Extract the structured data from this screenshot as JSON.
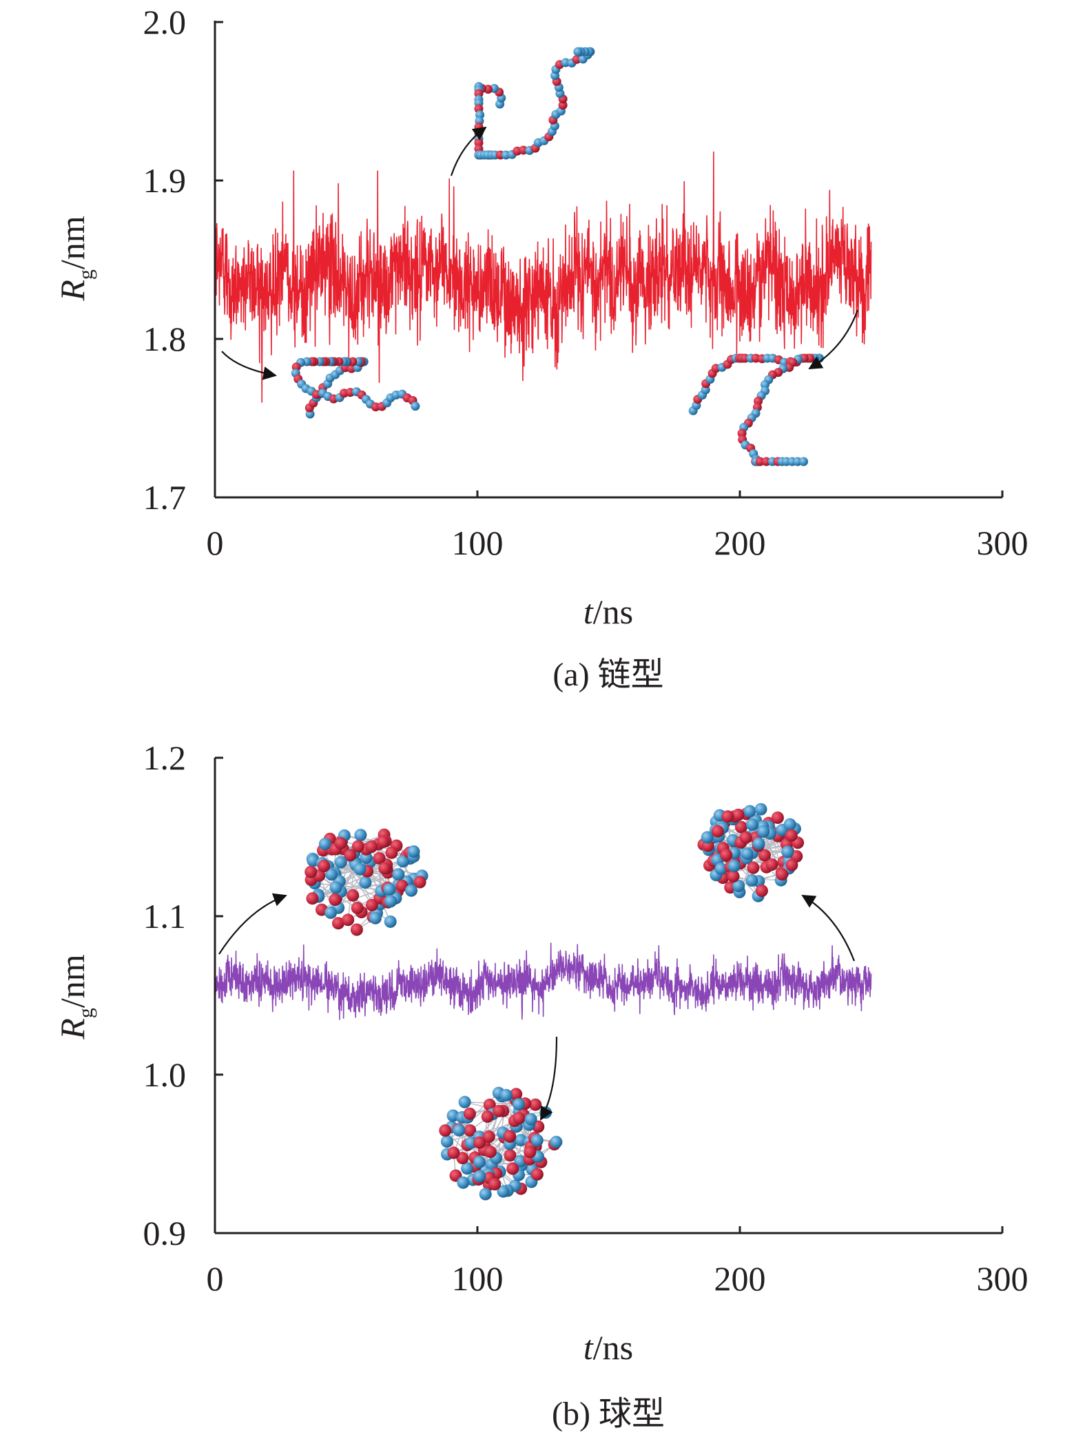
{
  "chart_data": [
    {
      "type": "line",
      "panel_caption": "(a) 链型",
      "xlabel": {
        "var": "t",
        "unit": "/ns"
      },
      "ylabel": {
        "var": "R",
        "sub": "g",
        "unit": "/nm"
      },
      "xlim": [
        0,
        300
      ],
      "ylim": [
        1.7,
        2.0
      ],
      "x_ticks": [
        0,
        100,
        200,
        300
      ],
      "x_tick_labels": [
        "0",
        "100",
        "200",
        "300"
      ],
      "y_ticks": [
        1.7,
        1.8,
        1.9,
        2.0
      ],
      "y_tick_labels": [
        "1.7",
        "1.8",
        "1.9",
        "2.0"
      ],
      "grid": false,
      "legend": "none",
      "series": [
        {
          "color": "#e8212f",
          "x_range": [
            0,
            250
          ],
          "mean": 1.84,
          "fluctuation": 0.016,
          "spikes": [
            {
              "x": 17,
              "y": 1.785
            },
            {
              "x": 30,
              "y": 1.906
            },
            {
              "x": 47,
              "y": 1.898
            },
            {
              "x": 62,
              "y": 1.906
            },
            {
              "x": 91,
              "y": 1.896
            },
            {
              "x": 97,
              "y": 1.792
            },
            {
              "x": 145,
              "y": 1.793
            },
            {
              "x": 158,
              "y": 1.885
            },
            {
              "x": 190,
              "y": 1.918
            },
            {
              "x": 225,
              "y": 1.882
            }
          ]
        }
      ],
      "annotations": [
        {
          "kind": "molecule-snapshot",
          "shape": "chain",
          "at_time": 0
        },
        {
          "kind": "molecule-snapshot",
          "shape": "chain",
          "at_time": 91
        },
        {
          "kind": "molecule-snapshot",
          "shape": "chain",
          "at_time": 250
        }
      ]
    },
    {
      "type": "line",
      "panel_caption": "(b) 球型",
      "xlabel": {
        "var": "t",
        "unit": "/ns"
      },
      "ylabel": {
        "var": "R",
        "sub": "g",
        "unit": "/nm"
      },
      "xlim": [
        0,
        300
      ],
      "ylim": [
        0.9,
        1.2
      ],
      "x_ticks": [
        0,
        100,
        200,
        300
      ],
      "x_tick_labels": [
        "0",
        "100",
        "200",
        "300"
      ],
      "y_ticks": [
        0.9,
        1.0,
        1.1,
        1.2
      ],
      "y_tick_labels": [
        "0.9",
        "1.0",
        "1.1",
        "1.2"
      ],
      "grid": false,
      "legend": "none",
      "series": [
        {
          "color": "#8a46b6",
          "x_range": [
            0,
            250
          ],
          "mean": 1.057,
          "fluctuation": 0.006,
          "spikes": [
            {
              "x": 128,
              "y": 1.083
            },
            {
              "x": 117,
              "y": 1.035
            },
            {
              "x": 70,
              "y": 1.072
            }
          ]
        }
      ],
      "annotations": [
        {
          "kind": "molecule-snapshot",
          "shape": "globule",
          "at_time": 0
        },
        {
          "kind": "molecule-snapshot",
          "shape": "globule",
          "at_time": 130
        },
        {
          "kind": "molecule-snapshot",
          "shape": "globule",
          "at_time": 245
        }
      ]
    }
  ],
  "colors": {
    "axis": "#231f20",
    "bead_red": "#c8283f",
    "bead_blue": "#3c8ec4"
  }
}
